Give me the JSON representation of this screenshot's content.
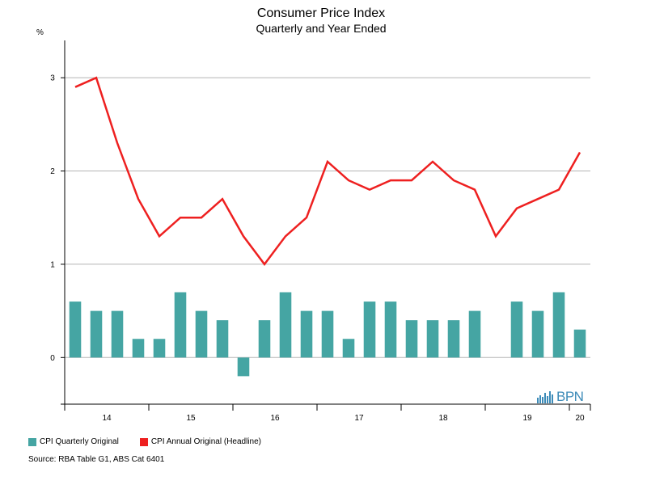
{
  "chart_data": {
    "type": "bar+line",
    "title": "Consumer Price Index",
    "subtitle": "Quarterly and Year Ended",
    "ylabel": "%",
    "ylim": [
      -0.5,
      3.4
    ],
    "yticks": [
      0,
      1,
      2,
      3
    ],
    "grid": true,
    "x_tick_labels": [
      "14",
      "15",
      "16",
      "17",
      "18",
      "19",
      "20"
    ],
    "quarters": [
      "2014Q1",
      "2014Q2",
      "2014Q3",
      "2014Q4",
      "2015Q1",
      "2015Q2",
      "2015Q3",
      "2015Q4",
      "2016Q1",
      "2016Q2",
      "2016Q3",
      "2016Q4",
      "2017Q1",
      "2017Q2",
      "2017Q3",
      "2017Q4",
      "2018Q1",
      "2018Q2",
      "2018Q3",
      "2018Q4",
      "2019Q1",
      "2019Q2",
      "2019Q3",
      "2019Q4",
      "2020Q1"
    ],
    "series": [
      {
        "name": "CPI Quarterly Original",
        "kind": "bar",
        "color": "#45a5a3",
        "values": [
          0.6,
          0.5,
          0.5,
          0.2,
          0.2,
          0.7,
          0.5,
          0.4,
          -0.2,
          0.4,
          0.7,
          0.5,
          0.5,
          0.2,
          0.6,
          0.6,
          0.4,
          0.4,
          0.4,
          0.5,
          0.0,
          0.6,
          0.5,
          0.7,
          0.3
        ]
      },
      {
        "name": "CPI Annual Original (Headline)",
        "kind": "line",
        "color": "#ee2020",
        "values": [
          2.9,
          3.0,
          2.3,
          1.7,
          1.3,
          1.5,
          1.5,
          1.7,
          1.3,
          1.0,
          1.3,
          1.5,
          2.1,
          1.9,
          1.8,
          1.9,
          1.9,
          2.1,
          1.9,
          1.8,
          1.3,
          1.6,
          1.7,
          1.8,
          2.2
        ]
      }
    ]
  },
  "legend": {
    "quarterly_label": "CPI Quarterly Original",
    "annual_label": "CPI Annual Original (Headline)"
  },
  "source": "Source: RBA Table G1, ABS Cat 6401",
  "logo": {
    "text": "BPN"
  }
}
